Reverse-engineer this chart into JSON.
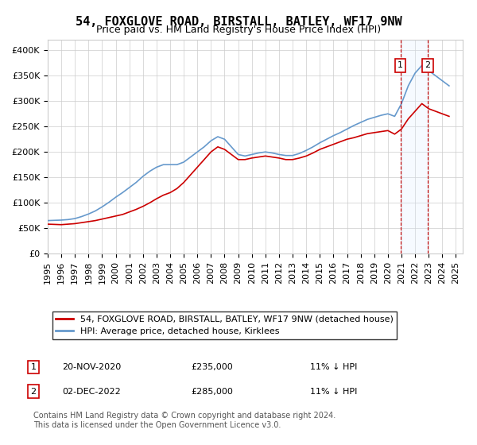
{
  "title": "54, FOXGLOVE ROAD, BIRSTALL, BATLEY, WF17 9NW",
  "subtitle": "Price paid vs. HM Land Registry's House Price Index (HPI)",
  "ylabel_ticks": [
    "£0",
    "£50K",
    "£100K",
    "£150K",
    "£200K",
    "£250K",
    "£300K",
    "£350K",
    "£400K"
  ],
  "ytick_values": [
    0,
    50000,
    100000,
    150000,
    200000,
    250000,
    300000,
    350000,
    400000
  ],
  "ylim": [
    0,
    420000
  ],
  "xlim_start": 1995.0,
  "xlim_end": 2025.5,
  "years": [
    1995,
    1996,
    1997,
    1998,
    1999,
    2000,
    2001,
    2002,
    2003,
    2004,
    2005,
    2006,
    2007,
    2008,
    2009,
    2010,
    2011,
    2012,
    2013,
    2014,
    2015,
    2016,
    2017,
    2018,
    2019,
    2020,
    2021,
    2022,
    2023,
    2024,
    2025
  ],
  "red_line_x": [
    1995.0,
    1995.5,
    1996.0,
    1996.5,
    1997.0,
    1997.5,
    1998.0,
    1998.5,
    1999.0,
    1999.5,
    2000.0,
    2000.5,
    2001.0,
    2001.5,
    2002.0,
    2002.5,
    2003.0,
    2003.5,
    2004.0,
    2004.5,
    2005.0,
    2005.5,
    2006.0,
    2006.5,
    2007.0,
    2007.5,
    2008.0,
    2008.5,
    2009.0,
    2009.5,
    2010.0,
    2010.5,
    2011.0,
    2011.5,
    2012.0,
    2012.5,
    2013.0,
    2013.5,
    2014.0,
    2014.5,
    2015.0,
    2015.5,
    2016.0,
    2016.5,
    2017.0,
    2017.5,
    2018.0,
    2018.5,
    2019.0,
    2019.5,
    2020.0,
    2020.5,
    2021.0,
    2021.5,
    2022.0,
    2022.5,
    2023.0,
    2023.5,
    2024.0,
    2024.5
  ],
  "red_line_y": [
    58000,
    57500,
    57000,
    58000,
    59000,
    61000,
    63000,
    65000,
    68000,
    71000,
    74000,
    77000,
    82000,
    87000,
    93000,
    100000,
    108000,
    115000,
    120000,
    128000,
    140000,
    155000,
    170000,
    185000,
    200000,
    210000,
    205000,
    195000,
    185000,
    185000,
    188000,
    190000,
    192000,
    190000,
    188000,
    185000,
    185000,
    188000,
    192000,
    198000,
    205000,
    210000,
    215000,
    220000,
    225000,
    228000,
    232000,
    236000,
    238000,
    240000,
    242000,
    235000,
    245000,
    265000,
    280000,
    295000,
    285000,
    280000,
    275000,
    270000
  ],
  "blue_line_x": [
    1995.0,
    1995.5,
    1996.0,
    1996.5,
    1997.0,
    1997.5,
    1998.0,
    1998.5,
    1999.0,
    1999.5,
    2000.0,
    2000.5,
    2001.0,
    2001.5,
    2002.0,
    2002.5,
    2003.0,
    2003.5,
    2004.0,
    2004.5,
    2005.0,
    2005.5,
    2006.0,
    2006.5,
    2007.0,
    2007.5,
    2008.0,
    2008.5,
    2009.0,
    2009.5,
    2010.0,
    2010.5,
    2011.0,
    2011.5,
    2012.0,
    2012.5,
    2013.0,
    2013.5,
    2014.0,
    2014.5,
    2015.0,
    2015.5,
    2016.0,
    2016.5,
    2017.0,
    2017.5,
    2018.0,
    2018.5,
    2019.0,
    2019.5,
    2020.0,
    2020.5,
    2021.0,
    2021.5,
    2022.0,
    2022.5,
    2023.0,
    2023.5,
    2024.0,
    2024.5
  ],
  "blue_line_y": [
    65000,
    65500,
    66000,
    67000,
    69000,
    73000,
    78000,
    84000,
    92000,
    101000,
    111000,
    120000,
    130000,
    140000,
    152000,
    162000,
    170000,
    175000,
    175000,
    175000,
    180000,
    190000,
    200000,
    210000,
    222000,
    230000,
    225000,
    210000,
    195000,
    192000,
    195000,
    198000,
    200000,
    198000,
    195000,
    193000,
    193000,
    197000,
    203000,
    210000,
    218000,
    225000,
    232000,
    238000,
    245000,
    252000,
    258000,
    264000,
    268000,
    272000,
    275000,
    270000,
    295000,
    330000,
    355000,
    370000,
    360000,
    350000,
    340000,
    330000
  ],
  "sale1_x": 2020.917,
  "sale1_y": 235000,
  "sale1_label": "1",
  "sale2_x": 2022.917,
  "sale2_y": 285000,
  "sale2_label": "2",
  "shaded_region_x1": 2020.917,
  "shaded_region_x2": 2022.917,
  "legend_red_label": "54, FOXGLOVE ROAD, BIRSTALL, BATLEY, WF17 9NW (detached house)",
  "legend_blue_label": "HPI: Average price, detached house, Kirklees",
  "annotation1_num": "1",
  "annotation1_date": "20-NOV-2020",
  "annotation1_price": "£235,000",
  "annotation1_hpi": "11% ↓ HPI",
  "annotation2_num": "2",
  "annotation2_date": "02-DEC-2022",
  "annotation2_price": "£285,000",
  "annotation2_hpi": "11% ↓ HPI",
  "footer": "Contains HM Land Registry data © Crown copyright and database right 2024.\nThis data is licensed under the Open Government Licence v3.0.",
  "red_color": "#cc0000",
  "blue_color": "#6699cc",
  "grid_color": "#cccccc",
  "shaded_color": "#ddeeff",
  "dashed_line_color": "#cc0000",
  "box_border_color": "#cc0000",
  "title_fontsize": 11,
  "subtitle_fontsize": 9,
  "tick_fontsize": 8,
  "legend_fontsize": 8,
  "annotation_fontsize": 8,
  "footer_fontsize": 7
}
